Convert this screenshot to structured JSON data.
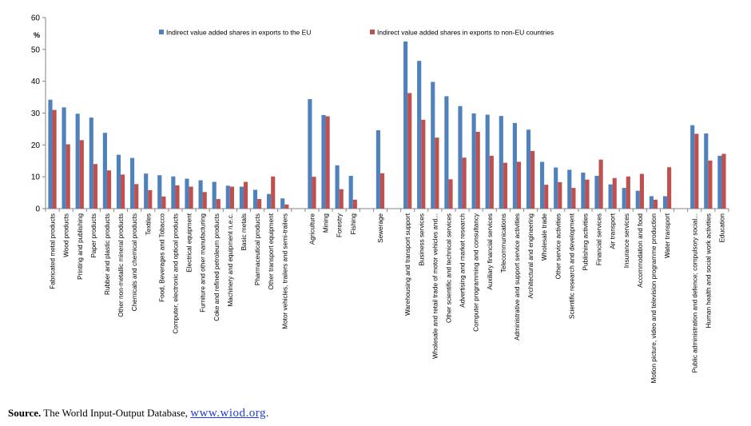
{
  "chart_data": {
    "type": "bar",
    "ylabel": "%",
    "ylim": [
      0,
      60
    ],
    "yticks": [
      0,
      10,
      20,
      30,
      40,
      50,
      60
    ],
    "grid": false,
    "legend_position": "top",
    "series": [
      {
        "name": "Indirect value added shares in exports to the EU",
        "color": "#4f81bd"
      },
      {
        "name": "Indirect value added shares in exports to non-EU countries",
        "color": "#c0504d"
      }
    ],
    "groups": [
      {
        "categories": [
          {
            "label": "Fabricated metal products",
            "eu": 34.2,
            "noneu": 31.0
          },
          {
            "label": "Wood products",
            "eu": 31.8,
            "noneu": 20.2
          },
          {
            "label": "Printing and publishing",
            "eu": 29.8,
            "noneu": 21.5
          },
          {
            "label": "Paper products",
            "eu": 28.6,
            "noneu": 14.0
          },
          {
            "label": "Rubber and plastic products",
            "eu": 23.8,
            "noneu": 12.0
          },
          {
            "label": "Other non-metallic mineral products",
            "eu": 16.9,
            "noneu": 10.7
          },
          {
            "label": "Chemicals and chemical products",
            "eu": 15.9,
            "noneu": 7.7
          },
          {
            "label": "Textiles",
            "eu": 11.0,
            "noneu": 5.8
          },
          {
            "label": "Food, Beverages and Tobacco",
            "eu": 10.5,
            "noneu": 3.8
          },
          {
            "label": "Computer, electronic and optical products",
            "eu": 10.1,
            "noneu": 7.3
          },
          {
            "label": "Electrical equipment",
            "eu": 9.4,
            "noneu": 6.9
          },
          {
            "label": "Furniture and other manufacturing",
            "eu": 8.9,
            "noneu": 5.2
          },
          {
            "label": "Coke and refined petroleum products",
            "eu": 8.4,
            "noneu": 3.0
          },
          {
            "label": "Machinery and equipment n.e.c.",
            "eu": 7.2,
            "noneu": 6.9
          },
          {
            "label": "Basic metals",
            "eu": 6.9,
            "noneu": 8.4
          },
          {
            "label": "Pharmaceutical products",
            "eu": 5.9,
            "noneu": 3.0
          },
          {
            "label": "Other transport equipment",
            "eu": 4.6,
            "noneu": 10.1
          },
          {
            "label": "Motor vehicles, trailers and semi-trailers",
            "eu": 3.2,
            "noneu": 1.3
          }
        ]
      },
      {
        "categories": [
          {
            "label": "Agriculture",
            "eu": 34.4,
            "noneu": 10.0
          },
          {
            "label": "Mining",
            "eu": 29.4,
            "noneu": 29.0
          },
          {
            "label": "Forestry",
            "eu": 13.6,
            "noneu": 6.1
          },
          {
            "label": "Fishing",
            "eu": 10.3,
            "noneu": 2.8
          }
        ]
      },
      {
        "categories": [
          {
            "label": "Sewerage",
            "eu": 24.6,
            "noneu": 11.1
          }
        ]
      },
      {
        "categories": [
          {
            "label": "Warehousing and transport support",
            "eu": 52.5,
            "noneu": 36.3
          },
          {
            "label": "Business services",
            "eu": 46.4,
            "noneu": 27.9
          },
          {
            "label": "Wholesale and retail trade of motor vehicles and...",
            "eu": 39.8,
            "noneu": 22.3
          },
          {
            "label": "Other scientific and technical services",
            "eu": 35.3,
            "noneu": 9.2
          },
          {
            "label": "Advertising and market research",
            "eu": 32.2,
            "noneu": 16.0
          },
          {
            "label": "Computer programming and consultancy",
            "eu": 29.9,
            "noneu": 24.1
          },
          {
            "label": "Auxiliary financial services",
            "eu": 29.5,
            "noneu": 16.6
          },
          {
            "label": "Telecommunications",
            "eu": 29.1,
            "noneu": 14.4
          },
          {
            "label": "Administrative and support service activities",
            "eu": 26.9,
            "noneu": 14.7
          },
          {
            "label": "Architectural and engineering",
            "eu": 24.8,
            "noneu": 18.1
          },
          {
            "label": "Wholesale trade",
            "eu": 14.7,
            "noneu": 7.5
          },
          {
            "label": "Other service activities",
            "eu": 12.9,
            "noneu": 8.3
          },
          {
            "label": "Scientific research and development",
            "eu": 12.2,
            "noneu": 6.5
          },
          {
            "label": "Publishing activities",
            "eu": 11.3,
            "noneu": 9.1
          },
          {
            "label": "Financial services",
            "eu": 10.3,
            "noneu": 15.4
          },
          {
            "label": "Air transport",
            "eu": 7.6,
            "noneu": 9.6
          },
          {
            "label": "Insurance services",
            "eu": 6.5,
            "noneu": 10.1
          },
          {
            "label": "Accommodation and food",
            "eu": 5.6,
            "noneu": 10.9
          },
          {
            "label": "Motion picture, video and television programme production",
            "eu": 3.9,
            "noneu": 2.8
          },
          {
            "label": "Water transport",
            "eu": 3.9,
            "noneu": 13.0
          }
        ]
      },
      {
        "categories": [
          {
            "label": "Public administration and defence; compulsory social...",
            "eu": 26.2,
            "noneu": 23.5
          },
          {
            "label": "Human health and social work activities",
            "eu": 23.6,
            "noneu": 15.1
          },
          {
            "label": "Education",
            "eu": 16.6,
            "noneu": 17.2
          }
        ]
      }
    ]
  },
  "source": {
    "label": "Source.",
    "text": " The World Input-Output Database, ",
    "link": "www.wiod.org",
    "tail": "."
  }
}
